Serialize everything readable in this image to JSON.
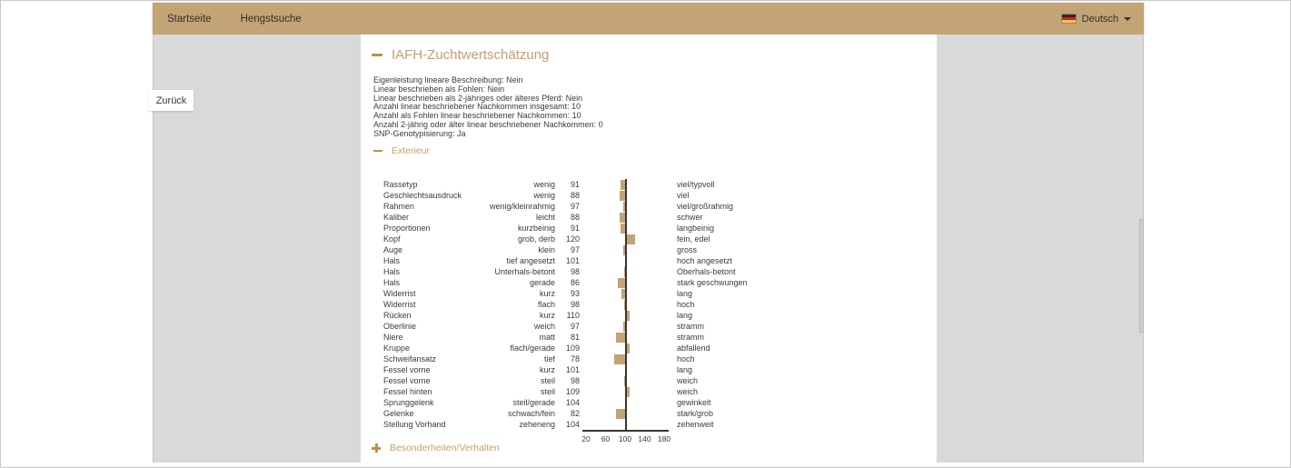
{
  "nav": {
    "items": [
      {
        "label": "Startseite"
      },
      {
        "label": "Hengstsuche"
      }
    ],
    "language": {
      "label": "Deutsch",
      "flag": "german-flag"
    }
  },
  "back_button": {
    "label": "Zurück"
  },
  "page": {
    "title": "IAFH-Zuchtwertschätzung",
    "info_lines": [
      "Eigenleistung lineare Beschreibung: Nein",
      "Linear beschrieben als Fohlen: Nein",
      "Linear beschrieben als 2-jähriges oder älteres Pferd: Nein",
      "Anzahl linear beschriebener Nachkommen insgesamt: 10",
      "Anzahl als Fohlen linear beschriebener Nachkommen: 10",
      "Anzahl 2-jährig oder älter linear beschriebener Nachkommen: 0",
      "SNP-Genotypisierung: Ja"
    ],
    "sections": {
      "exterieur": {
        "label": "Exterieur",
        "state": "expanded"
      },
      "besonderheiten": {
        "label": "Besonderheiten/Verhalten",
        "state": "collapsed"
      }
    }
  },
  "chart_data": {
    "type": "bar",
    "orientation": "horizontal-diverging",
    "title": "Exterieur",
    "baseline": 100,
    "xlim": [
      20,
      180
    ],
    "axis_ticks": [
      20,
      60,
      100,
      140,
      180
    ],
    "bar_color": "#c2a476",
    "rows": [
      {
        "trait": "Rassetyp",
        "low": "wenig",
        "value": 91,
        "high": "viel/typvoll"
      },
      {
        "trait": "Geschlechtsausdruck",
        "low": "wenig",
        "value": 88,
        "high": "viel"
      },
      {
        "trait": "Rahmen",
        "low": "wenig/kleinrahmig",
        "value": 97,
        "high": "viel/großrahmig"
      },
      {
        "trait": "Kaliber",
        "low": "leicht",
        "value": 88,
        "high": "schwer"
      },
      {
        "trait": "Proportionen",
        "low": "kurzbeinig",
        "value": 91,
        "high": "langbeinig"
      },
      {
        "trait": "Kopf",
        "low": "grob, derb",
        "value": 120,
        "high": "fein, edel"
      },
      {
        "trait": "Auge",
        "low": "klein",
        "value": 97,
        "high": "gross"
      },
      {
        "trait": "Hals",
        "low": "tief angesetzt",
        "value": 101,
        "high": "hoch angesetzt"
      },
      {
        "trait": "Hals",
        "low": "Unterhals-betont",
        "value": 98,
        "high": "Oberhals-betont"
      },
      {
        "trait": "Hals",
        "low": "gerade",
        "value": 86,
        "high": "stark geschwungen"
      },
      {
        "trait": "Widerrist",
        "low": "kurz",
        "value": 93,
        "high": "lang"
      },
      {
        "trait": "Widerrist",
        "low": "flach",
        "value": 98,
        "high": "hoch"
      },
      {
        "trait": "Rücken",
        "low": "kurz",
        "value": 110,
        "high": "lang"
      },
      {
        "trait": "Oberlinie",
        "low": "weich",
        "value": 97,
        "high": "stramm"
      },
      {
        "trait": "Niere",
        "low": "matt",
        "value": 81,
        "high": "stramm"
      },
      {
        "trait": "Kruppe",
        "low": "flach/gerade",
        "value": 109,
        "high": "abfallend"
      },
      {
        "trait": "Schweifansatz",
        "low": "tief",
        "value": 78,
        "high": "hoch"
      },
      {
        "trait": "Fessel vorne",
        "low": "kurz",
        "value": 101,
        "high": "lang"
      },
      {
        "trait": "Fessel vorne",
        "low": "steil",
        "value": 98,
        "high": "weich"
      },
      {
        "trait": "Fessel hinten",
        "low": "steil",
        "value": 109,
        "high": "weich"
      },
      {
        "trait": "Sprunggelenk",
        "low": "steil/gerade",
        "value": 104,
        "high": "gewinkelt"
      },
      {
        "trait": "Gelenke",
        "low": "schwach/fein",
        "value": 82,
        "high": "stark/grob"
      },
      {
        "trait": "Stellung Vorhand",
        "low": "zeheneng",
        "value": 104,
        "high": "zehenweit"
      }
    ]
  },
  "colors": {
    "accent_tan": "#c2a477",
    "bar": "#c2a476",
    "heading_text": "#c49f68",
    "background_gray": "#d9d9d9",
    "axis_line": "#38362e"
  }
}
